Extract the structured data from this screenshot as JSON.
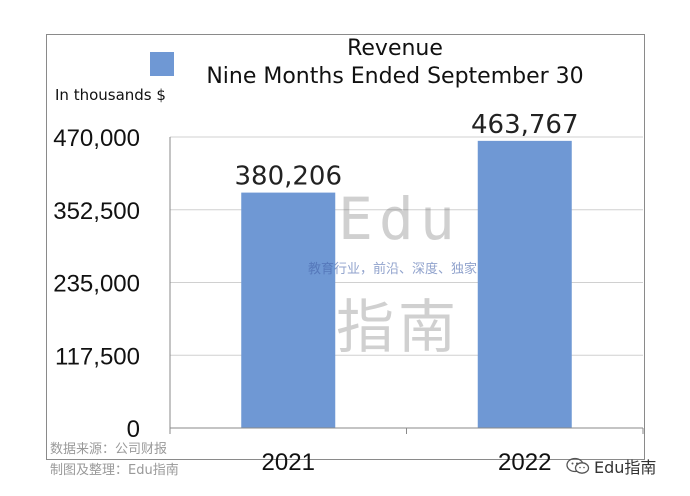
{
  "chart_data": {
    "type": "bar",
    "title": "Revenue",
    "subtitle": "Nine Months Ended September 30",
    "ylabel": "In thousands $",
    "categories": [
      "2021",
      "2022"
    ],
    "values": [
      380206,
      463767
    ],
    "value_labels": [
      "380,206",
      "463,767"
    ],
    "ylim": [
      0,
      470000
    ],
    "yticks": [
      0,
      117500,
      235000,
      352500,
      470000
    ],
    "ytick_labels": [
      "0",
      "117,500",
      "235,000",
      "352,500",
      "470,000"
    ],
    "grid": true,
    "legend": "top-left",
    "bar_color": "#6f98d4"
  },
  "watermark": {
    "edu": "Edu",
    "tagline": "教育行业，前沿、深度、独家",
    "cn": "指南"
  },
  "footnotes": {
    "source": "数据来源：公司财报",
    "maker": "制图及整理：Edu指南"
  },
  "brand": {
    "label": "Edu指南",
    "icon": "wechat-icon"
  }
}
